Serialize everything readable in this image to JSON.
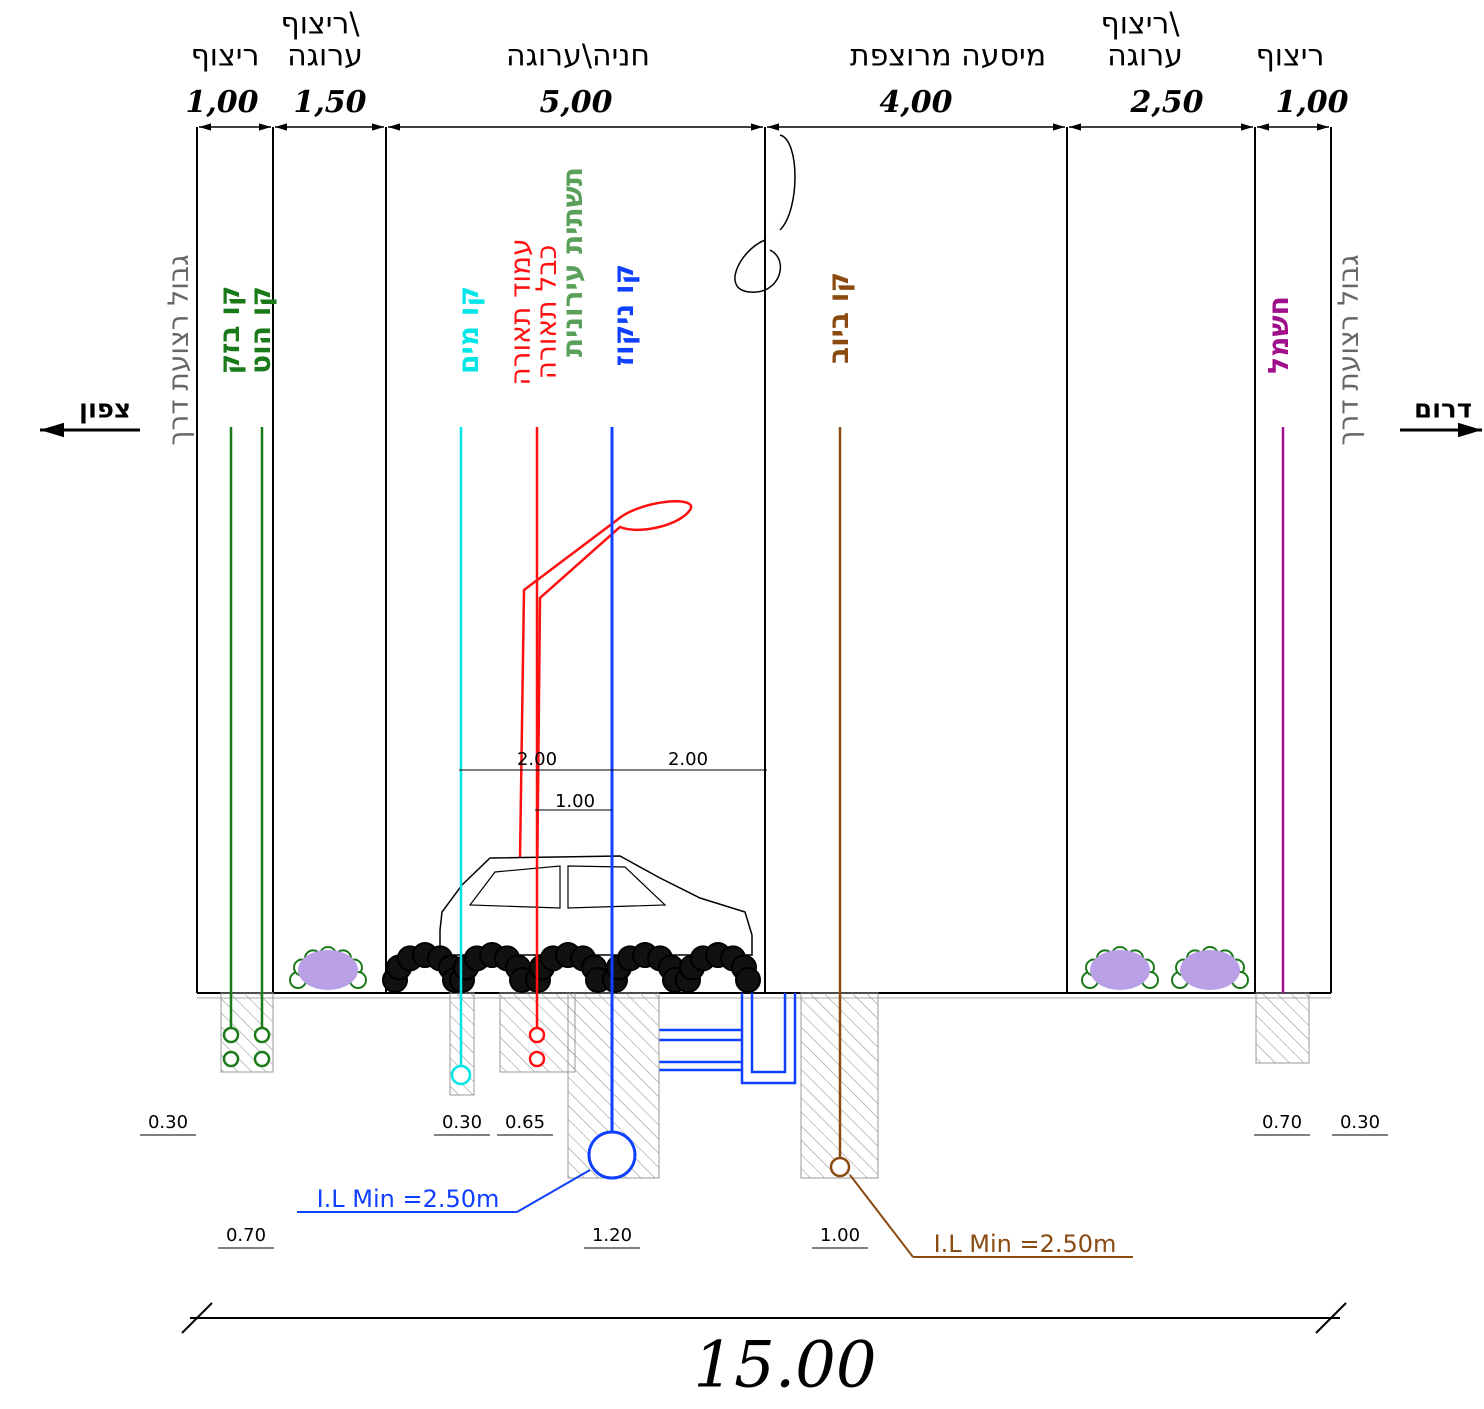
{
  "zones": [
    {
      "lines": [
        "ריצוף"
      ],
      "width": "1,00"
    },
    {
      "lines": [
        "ריצוף\\",
        "ערוגה"
      ],
      "width": "1,50"
    },
    {
      "lines": [
        "חניה\\ערוגה"
      ],
      "width": "5,00"
    },
    {
      "lines": [
        "מיסעה מרוצפת"
      ],
      "width": "4,00"
    },
    {
      "lines": [
        "ריצוף\\",
        "ערוגה"
      ],
      "width": "2,50"
    },
    {
      "lines": [
        "ריצוף"
      ],
      "width": "1,00"
    }
  ],
  "boundary": {
    "left": "גבול רצועת דרך",
    "right": "גבול רצועת דרך"
  },
  "directions": {
    "north": "צפון",
    "south": "דרום"
  },
  "utilities": [
    {
      "label": "קו בזק",
      "color": "#1a7a1a"
    },
    {
      "label": "קו הוט",
      "color": "#1a7a1a"
    },
    {
      "label": "קו מים",
      "color": "#00e5e5"
    },
    {
      "label": "עמוד תאורה",
      "color": "#ff1010"
    },
    {
      "label": "כבל תאורה",
      "color": "#ff1010"
    },
    {
      "label": "תשתית עירונית",
      "color": "#5aa05a"
    },
    {
      "label": "קו ניקוז",
      "color": "#1040ff"
    },
    {
      "label": "קו ביוב",
      "color": "#8a4a10"
    },
    {
      "label": "חשמל",
      "color": "#a0108a"
    }
  ],
  "parking_dims": [
    "2.00",
    "2.00",
    "1.00"
  ],
  "trench_dims": [
    "0.30",
    "0.30",
    "0.65",
    "0.70",
    "0.30",
    "0.70",
    "1.20",
    "1.00"
  ],
  "invert_level": [
    "I.L Min =2.50m",
    "I.L Min =2.50m"
  ],
  "total_width": "15.00"
}
